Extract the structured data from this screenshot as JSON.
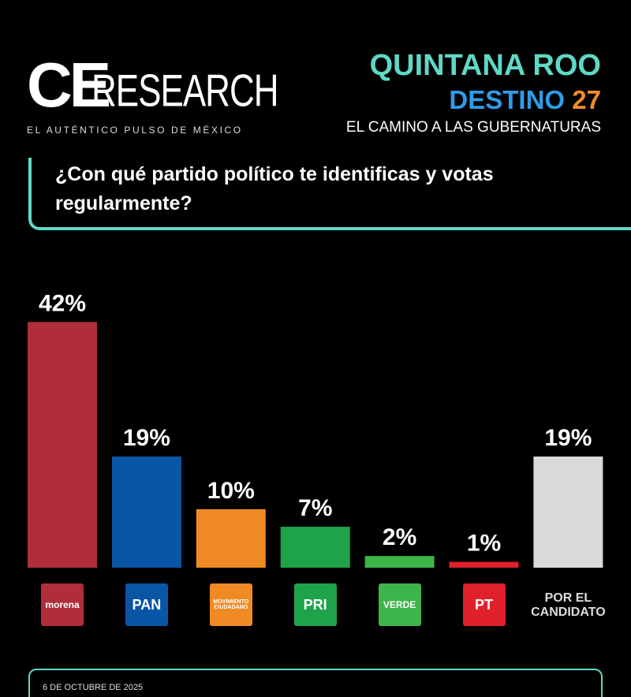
{
  "logo": {
    "primary": "CE",
    "secondary": "RESEARCH",
    "tagline": "EL AUTÉNTICO PULSO DE MÉXICO"
  },
  "header": {
    "state": "QUINTANA ROO",
    "campaign": "DESTINO",
    "campaign_number": "27",
    "subtitle": "EL CAMINO A LAS GUBERNATURAS"
  },
  "chart_data": {
    "type": "bar",
    "title": "¿Con qué partido político te identificas y votas regularmente?",
    "categories": [
      "morena",
      "PAN",
      "MOVIMIENTO CIUDADANO",
      "PRI",
      "VERDE",
      "PT",
      "POR EL CANDIDATO"
    ],
    "values": [
      42,
      19,
      10,
      7,
      2,
      1,
      19
    ],
    "value_labels": [
      "42%",
      "19%",
      "10%",
      "7%",
      "2%",
      "1%",
      "19%"
    ],
    "colors": [
      "#b02e3a",
      "#0a56a6",
      "#f08a24",
      "#1fa34a",
      "#3cb54a",
      "#e0202a",
      "#d9d9d9"
    ]
  },
  "footer": {
    "date": "6 DE OCTUBRE DE 2025"
  }
}
